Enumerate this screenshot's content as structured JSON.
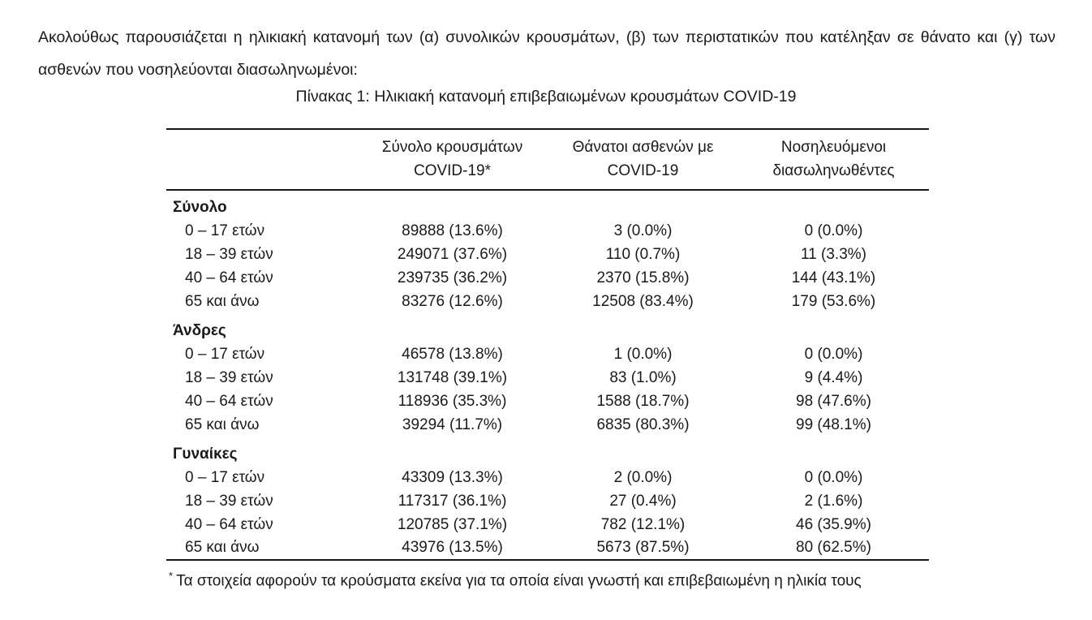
{
  "colors": {
    "background": "#ffffff",
    "text": "#1a1a1a",
    "rule": "#161616"
  },
  "intro": {
    "text": "Ακολούθως παρουσιάζεται η ηλικιακή κατανομή των (α) συνολικών κρουσμάτων, (β) των περιστατικών που κατέληξαν σε θάνατο και (γ) των ασθενών που νοσηλεύονται διασωληνωμένοι:"
  },
  "table": {
    "title": "Πίνακας 1: Ηλικιακή κατανομή επιβεβαιωμένων κρουσμάτων COVID-19",
    "columns": [
      {
        "line1": "Σύνολο κρουσμάτων",
        "line2": "COVID-19*"
      },
      {
        "line1": "Θάνατοι ασθενών με",
        "line2": "COVID-19"
      },
      {
        "line1": "Νοσηλευόμενοι",
        "line2": "διασωληνωθέντες"
      }
    ],
    "sections": [
      {
        "label": "Σύνολο",
        "rows": [
          {
            "age": "0 – 17 ετών",
            "cases": "89888 (13.6%)",
            "deaths": "3 (0.0%)",
            "intubated": "0 (0.0%)"
          },
          {
            "age": "18 – 39 ετών",
            "cases": "249071 (37.6%)",
            "deaths": "110 (0.7%)",
            "intubated": "11 (3.3%)"
          },
          {
            "age": "40 – 64 ετών",
            "cases": "239735 (36.2%)",
            "deaths": "2370 (15.8%)",
            "intubated": "144 (43.1%)"
          },
          {
            "age": "65 και άνω",
            "cases": "83276 (12.6%)",
            "deaths": "12508 (83.4%)",
            "intubated": "179 (53.6%)"
          }
        ]
      },
      {
        "label": "Άνδρες",
        "rows": [
          {
            "age": "0 – 17 ετών",
            "cases": "46578 (13.8%)",
            "deaths": "1 (0.0%)",
            "intubated": "0 (0.0%)"
          },
          {
            "age": "18 – 39 ετών",
            "cases": "131748 (39.1%)",
            "deaths": "83 (1.0%)",
            "intubated": "9 (4.4%)"
          },
          {
            "age": "40 – 64 ετών",
            "cases": "118936 (35.3%)",
            "deaths": "1588 (18.7%)",
            "intubated": "98 (47.6%)"
          },
          {
            "age": "65 και άνω",
            "cases": "39294 (11.7%)",
            "deaths": "6835 (80.3%)",
            "intubated": "99 (48.1%)"
          }
        ]
      },
      {
        "label": "Γυναίκες",
        "rows": [
          {
            "age": "0 – 17 ετών",
            "cases": "43309 (13.3%)",
            "deaths": "2 (0.0%)",
            "intubated": "0 (0.0%)"
          },
          {
            "age": "18 – 39 ετών",
            "cases": "117317 (36.1%)",
            "deaths": "27 (0.4%)",
            "intubated": "2 (1.6%)"
          },
          {
            "age": "40 – 64 ετών",
            "cases": "120785 (37.1%)",
            "deaths": "782 (12.1%)",
            "intubated": "46 (35.9%)"
          },
          {
            "age": "65 και άνω",
            "cases": "43976 (13.5%)",
            "deaths": "5673 (87.5%)",
            "intubated": "80 (62.5%)"
          }
        ]
      }
    ]
  },
  "footnote": {
    "marker": "*",
    "text": "Τα στοιχεία αφορούν τα κρούσματα εκείνα για τα οποία είναι γνωστή και επιβεβαιωμένη η ηλικία τους"
  }
}
